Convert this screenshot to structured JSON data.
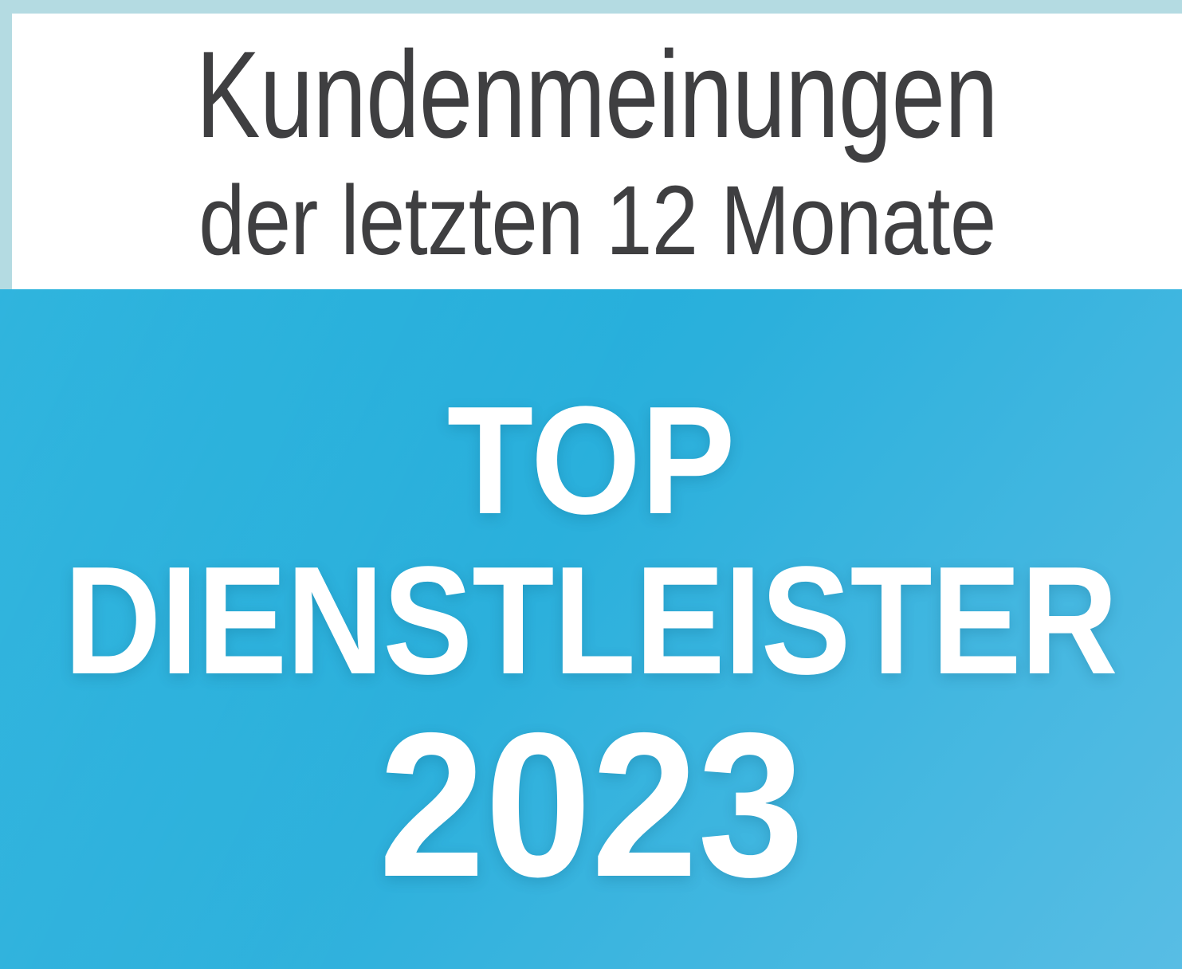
{
  "header": {
    "line1": "Kundenmeinungen",
    "line2": "der letzten 12 Monate"
  },
  "seal": {
    "line1": "TOP",
    "line2": "DIENSTLEISTER",
    "line3": "2023"
  },
  "colors": {
    "border_light_blue": "#b4dbe2",
    "header_background": "#ffffff",
    "header_text": "#3f3f41",
    "seal_text": "#ffffff",
    "seal_gradient_start": "#13aad9",
    "seal_gradient_mid": "#2bb0dc",
    "seal_gradient_end": "#58bde4"
  }
}
